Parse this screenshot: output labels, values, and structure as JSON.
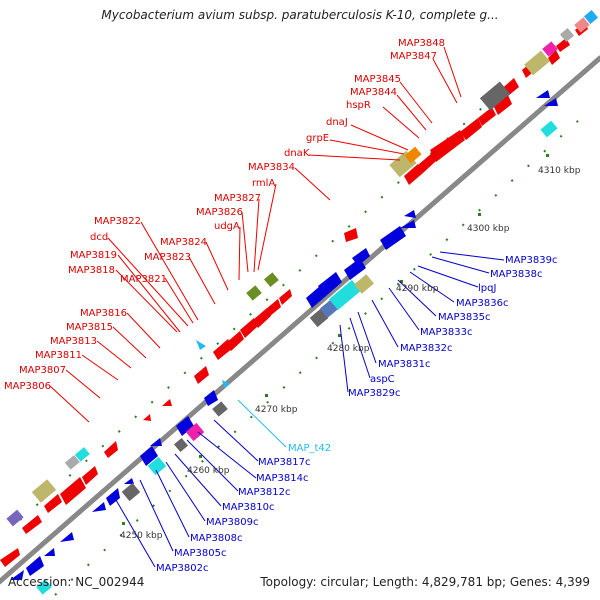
{
  "title": "Mycobacterium avium subsp. paratuberculosis K-10, complete g...",
  "footer": {
    "accession": "Accession: NC_002944",
    "summary": "Topology: circular; Length: 4,829,781 bp; Genes: 4,399"
  },
  "colors": {
    "forward": "#ee0000",
    "reverse": "#0000dd",
    "backbone": "#888888",
    "tick": "#2e7d20",
    "rna": "#22bbee",
    "khaki": "#bdb76b",
    "darkgrey": "#666666",
    "cyan": "#22dddd",
    "magenta": "#ee22aa",
    "olive": "#6b8e23"
  },
  "scale_labels": [
    "4250 kbp",
    "4260 kbp",
    "4270 kbp",
    "4280 kbp",
    "4290 kbp",
    "4300 kbp",
    "4310 kbp"
  ],
  "forward_labels": [
    "MAP3848",
    "MAP3847",
    "MAP3845",
    "MAP3844",
    "hspR",
    "dnaJ",
    "grpE",
    "dnaK",
    "MAP3834",
    "rmlA",
    "MAP3827",
    "MAP3826",
    "udgA",
    "MAP3824",
    "MAP3823",
    "MAP3822",
    "dcd",
    "MAP3819",
    "MAP3821",
    "MAP3818",
    "MAP3816",
    "MAP3815",
    "MAP3813",
    "MAP3811",
    "MAP3807",
    "MAP3806"
  ],
  "reverse_labels": [
    "MAP3839c",
    "MAP3838c",
    "lpqJ",
    "MAP3836c",
    "MAP3835c",
    "MAP3833c",
    "MAP3832c",
    "MAP3831c",
    "aspC",
    "MAP3829c",
    "MAP3817c",
    "MAP3814c",
    "MAP3812c",
    "MAP3810c",
    "MAP3809c",
    "MAP3808c",
    "MAP3805c",
    "MAP3802c"
  ],
  "rna_labels": [
    "MAP_t42"
  ]
}
